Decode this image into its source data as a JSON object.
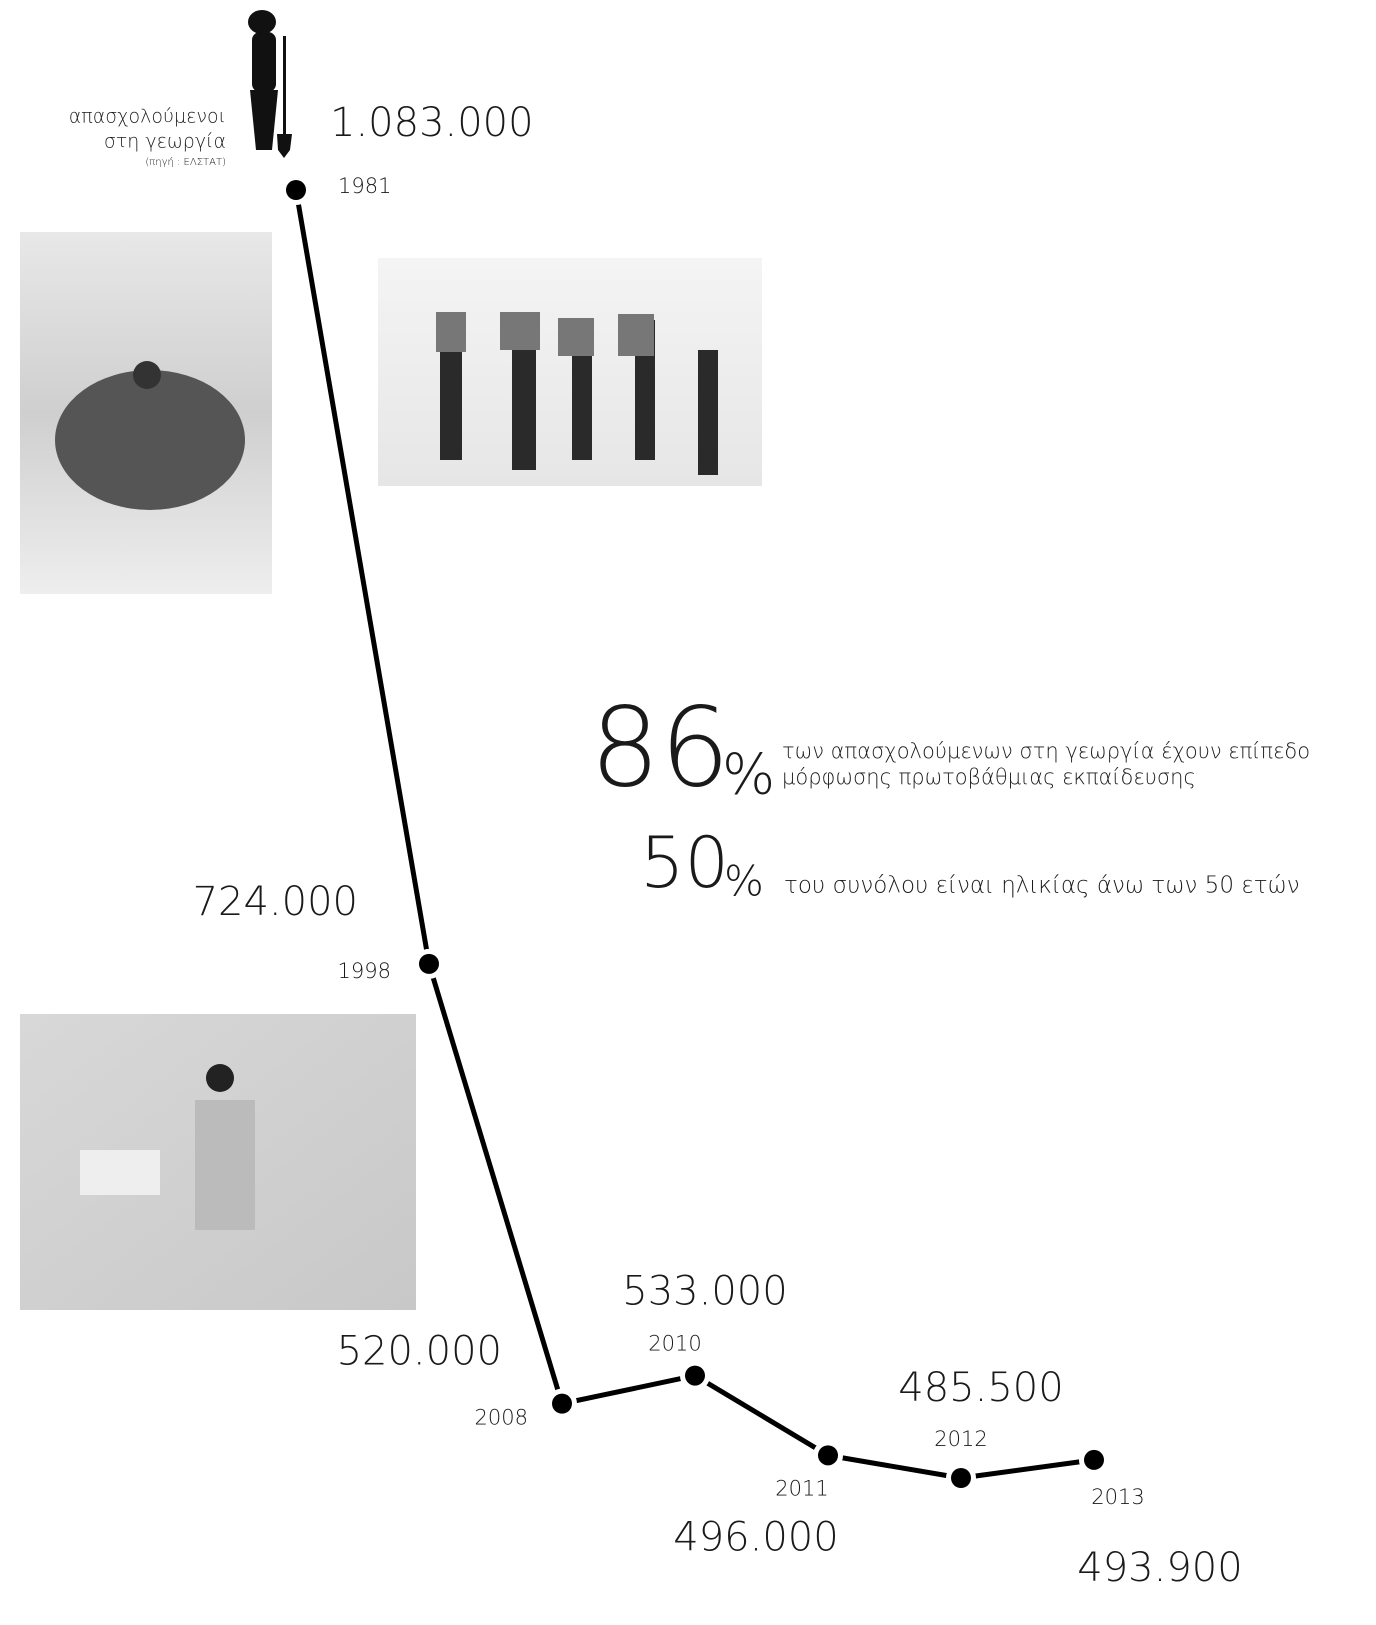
{
  "chart_data": {
    "type": "line",
    "title_lines": [
      "απασχολούμενοι",
      "στη γεωργία"
    ],
    "source": "(πηγή : ΕΛΣΤΑΤ)",
    "categories": [
      "1981",
      "1998",
      "2008",
      "2010",
      "2011",
      "2012",
      "2013"
    ],
    "values": [
      1083000,
      724000,
      520000,
      533000,
      496000,
      485500,
      493900
    ],
    "value_labels": [
      "1.083.000",
      "724.000",
      "520.000",
      "533.000",
      "496.000",
      "485.500",
      "493.900"
    ],
    "color": "#000000",
    "stats": [
      {
        "value": 86,
        "unit": "%",
        "text_lines": [
          "των απασχολούμενων στη γεωργία έχουν επίπεδο",
          "μόρφωσης πρωτοβάθμιας εκπαίδευσης"
        ]
      },
      {
        "value": 50,
        "unit": "%",
        "text_lines": [
          "του συνόλου είναι ηλικίας άνω των 50 ετών"
        ]
      }
    ]
  }
}
